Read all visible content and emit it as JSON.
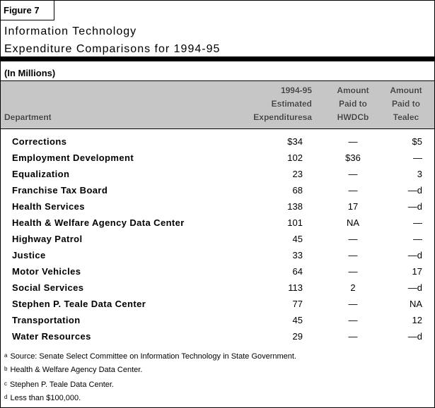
{
  "figure_label": "Figure 7",
  "title_lines": [
    "Information Technology",
    "Expenditure Comparisons for 1994-95"
  ],
  "units": "(In Millions)",
  "columns": {
    "department": "Department",
    "expenditures": [
      "1994-95",
      "Estimated",
      "Expendituresa"
    ],
    "hwdc": [
      "Amount",
      "Paid to",
      "HWDCb"
    ],
    "teale": [
      "Amount",
      "Paid to",
      "Tealec"
    ]
  },
  "rows": [
    {
      "department": "Corrections",
      "expenditures": "$34",
      "hwdc": "—",
      "teale": "$5"
    },
    {
      "department": "Employment Development",
      "expenditures": "102",
      "hwdc": "$36",
      "teale": "—"
    },
    {
      "department": "Equalization",
      "expenditures": "23",
      "hwdc": "—",
      "teale": "3"
    },
    {
      "department": "Franchise Tax Board",
      "expenditures": "68",
      "hwdc": "—",
      "teale": "—d"
    },
    {
      "department": "Health Services",
      "expenditures": "138",
      "hwdc": "17",
      "teale": "—d"
    },
    {
      "department": "Health & Welfare Agency Data Center",
      "expenditures": "101",
      "hwdc": "NA",
      "teale": "—"
    },
    {
      "department": "Highway Patrol",
      "expenditures": "45",
      "hwdc": "—",
      "teale": "—"
    },
    {
      "department": "Justice",
      "expenditures": "33",
      "hwdc": "—",
      "teale": "—d"
    },
    {
      "department": "Motor Vehicles",
      "expenditures": "64",
      "hwdc": "—",
      "teale": "17"
    },
    {
      "department": "Social Services",
      "expenditures": "113",
      "hwdc": "2",
      "teale": "—d"
    },
    {
      "department": "Stephen P. Teale Data Center",
      "expenditures": "77",
      "hwdc": "—",
      "teale": "NA"
    },
    {
      "department": "Transportation",
      "expenditures": "45",
      "hwdc": "—",
      "teale": "12"
    },
    {
      "department": "Water Resources",
      "expenditures": "29",
      "hwdc": "—",
      "teale": "—d"
    }
  ],
  "footnotes": [
    {
      "mark": "a",
      "text": "Source: Senate Select Committee on Information Technology in State Government."
    },
    {
      "mark": "b",
      "text": "Health & Welfare Agency Data Center."
    },
    {
      "mark": "c",
      "text": "Stephen P. Teale Data Center."
    },
    {
      "mark": "d",
      "text": "Less than $100,000."
    }
  ]
}
